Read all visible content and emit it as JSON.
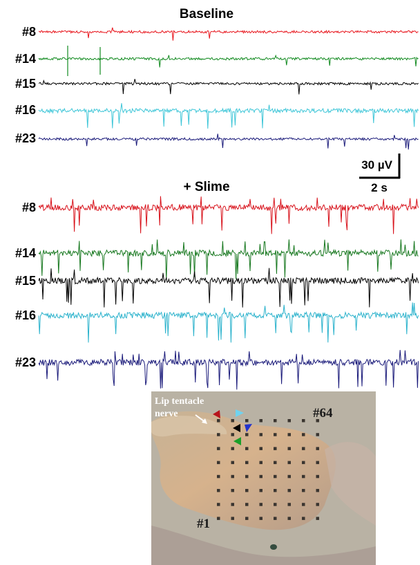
{
  "baseline": {
    "title": "Baseline",
    "channels": [
      {
        "label": "#8",
        "color": "#e8141b",
        "spikes": "low"
      },
      {
        "label": "#14",
        "color": "#118a1f",
        "spikes": "low"
      },
      {
        "label": "#15",
        "color": "#000000",
        "spikes": "low"
      },
      {
        "label": "#16",
        "color": "#3ec6d8",
        "spikes": "burst"
      },
      {
        "label": "#23",
        "color": "#1a1a7a",
        "spikes": "low"
      }
    ]
  },
  "slime": {
    "title": "+ Slime",
    "channels": [
      {
        "label": "#8",
        "color": "#d8121b",
        "spikes": "high"
      },
      {
        "label": "#14",
        "color": "#17781f",
        "spikes": "high"
      },
      {
        "label": "#15",
        "color": "#000000",
        "spikes": "high"
      },
      {
        "label": "#16",
        "color": "#2ab2cc",
        "spikes": "high"
      },
      {
        "label": "#23",
        "color": "#1a1a7a",
        "spikes": "high"
      }
    ]
  },
  "scale_bar": {
    "amplitude": "30 µV",
    "time": "2 s"
  },
  "photo": {
    "nerve_label_line1": "Lip tentacle",
    "nerve_label_line2": "nerve",
    "electrode_first": "#1",
    "electrode_last": "#64",
    "marker_colors": [
      "#b8141b",
      "#6fd3f0",
      "#000000",
      "#2233cc",
      "#19a02a"
    ]
  }
}
